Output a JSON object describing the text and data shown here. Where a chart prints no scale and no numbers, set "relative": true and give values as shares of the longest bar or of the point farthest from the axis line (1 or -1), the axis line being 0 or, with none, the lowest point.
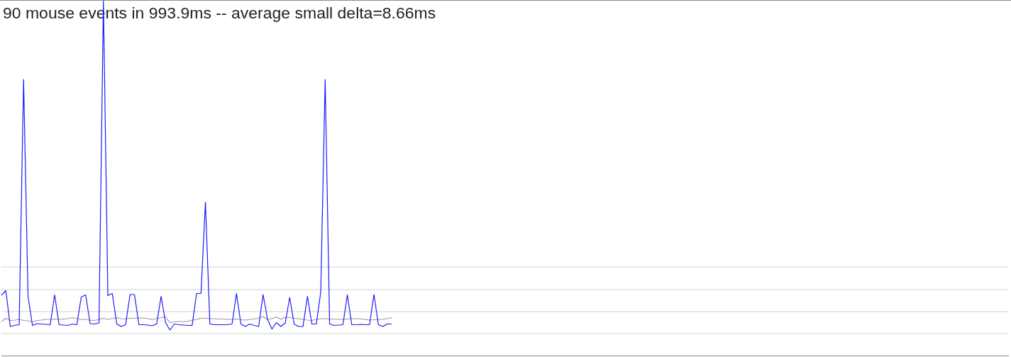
{
  "chart_data": {
    "type": "line",
    "title": "90 mouse events in 993.9ms -- average small delta=8.66ms",
    "relative": true,
    "categories": [
      null,
      null,
      null,
      null,
      null,
      null,
      null,
      null,
      null,
      null,
      null,
      null,
      null,
      null,
      null,
      null,
      null,
      null,
      null,
      null,
      null,
      null,
      null,
      null,
      null,
      null,
      null,
      null,
      null,
      null,
      null,
      null,
      null,
      null,
      null,
      null,
      null,
      null,
      null,
      null,
      null,
      null,
      null,
      null,
      null,
      null,
      null,
      null,
      null,
      null,
      null,
      null,
      null,
      null,
      null,
      null,
      null,
      null,
      null,
      null,
      null,
      null,
      null,
      null,
      null,
      null,
      null,
      null,
      null,
      null,
      null,
      null,
      null,
      null,
      null,
      null,
      null,
      null,
      null,
      null,
      null,
      null,
      null,
      null,
      null,
      null,
      null,
      null,
      null,
      null,
      null,
      null,
      null,
      null,
      null,
      null,
      null,
      null,
      null,
      null,
      null,
      null,
      null,
      null,
      null,
      null,
      null,
      null,
      null,
      null,
      null,
      null,
      null,
      null,
      null,
      null,
      null,
      null,
      null,
      null,
      null,
      null,
      null,
      null,
      null,
      null,
      null,
      null,
      null,
      null,
      null,
      null,
      null,
      null,
      null,
      null,
      null,
      null,
      null,
      null,
      null,
      null,
      null,
      null,
      null,
      null,
      null,
      null,
      null,
      null,
      null,
      null,
      null,
      null,
      null,
      null,
      null,
      null,
      null,
      null,
      null,
      null,
      null,
      null,
      null,
      null,
      null,
      null,
      null,
      null,
      null,
      null,
      null,
      null,
      null,
      null,
      null,
      null,
      null,
      null,
      null,
      null,
      null,
      null,
      null,
      null,
      null,
      null,
      null,
      null,
      null,
      null,
      null,
      null,
      null,
      null,
      null,
      null,
      null,
      null,
      null,
      null,
      null,
      null,
      null,
      null,
      null,
      null,
      null,
      null,
      null,
      null,
      null,
      null,
      null,
      null,
      null,
      null,
      null,
      null,
      null,
      null,
      null,
      null,
      null,
      null,
      null,
      null
    ],
    "series": [
      {
        "color": "#1a1aff",
        "values": [
          0.17,
          0.183,
          0.082,
          0.085,
          0.087,
          0.778,
          0.167,
          0.085,
          0.09,
          0.089,
          0.088,
          0.087,
          0.171,
          0.087,
          0.086,
          0.085,
          0.089,
          0.087,
          0.165,
          0.171,
          0.09,
          0.089,
          0.092,
          1,
          0.169,
          0.175,
          0.089,
          0.082,
          0.087,
          0.172,
          0.172,
          0.087,
          0.087,
          0.086,
          0.084,
          0.089,
          0.167,
          0.093,
          0.072,
          0.089,
          0.087,
          0.086,
          0.085,
          0.085,
          0.175,
          0.175,
          0.432,
          0.089,
          0.087,
          0.087,
          0.087,
          0.087,
          0.089,
          0.175,
          0.089,
          0.082,
          0.089,
          0.085,
          0.082,
          0.172,
          0.102,
          0.075,
          0.093,
          0.082,
          0.092,
          0.164,
          0.089,
          0.082,
          0.082,
          0.167,
          0.089,
          0.089,
          0.179,
          0.778,
          0.089,
          0.085,
          0.086,
          0.087,
          0.171,
          0.087,
          0.087,
          0.088,
          0.087,
          0.087,
          0.172,
          0.087,
          0.082,
          0.089,
          0.089,
          null,
          null,
          null,
          null,
          null,
          null,
          null,
          null,
          null,
          null,
          null,
          null,
          null,
          null,
          null,
          null,
          null,
          null,
          null,
          null,
          null,
          null,
          null,
          null,
          null,
          null,
          null,
          null,
          null,
          null,
          null,
          null,
          null,
          null,
          null,
          null,
          null,
          null,
          null,
          null,
          null,
          null,
          null,
          null,
          null,
          null,
          null,
          null,
          null,
          null,
          null,
          null,
          null,
          null,
          null,
          null,
          null,
          null,
          null,
          null,
          null,
          null,
          null,
          null,
          null,
          null,
          null,
          null,
          null,
          null,
          null,
          null,
          null,
          null,
          null,
          null,
          null,
          null,
          null,
          null,
          null,
          null,
          null,
          null,
          null,
          null,
          null,
          null,
          null,
          null,
          null,
          null,
          null,
          null,
          null,
          null,
          null,
          null,
          null,
          null,
          null,
          null,
          null,
          null,
          null,
          null,
          null,
          null,
          null,
          null,
          null,
          null,
          null,
          null,
          null,
          null,
          null,
          null,
          null,
          null,
          null,
          null,
          null,
          null,
          null,
          null,
          null,
          null,
          null,
          null,
          null,
          null,
          null,
          null,
          null,
          null,
          null,
          null,
          null
        ]
      },
      {
        "color": "#999999",
        "values": [
          0.096,
          0.105,
          0.099,
          0.1,
          0.102,
          0.099,
          0.098,
          0.095,
          0.099,
          0.1,
          0.102,
          0.102,
          0.103,
          0.102,
          0.103,
          0.104,
          0.107,
          0.104,
          0.102,
          0.102,
          0.1,
          0.099,
          0.102,
          0.105,
          0.102,
          0.104,
          0.107,
          0.104,
          0.103,
          0.105,
          0.105,
          0.106,
          0.106,
          0.104,
          0.102,
          0.104,
          0.107,
          0.109,
          0.093,
          0.095,
          0.096,
          0.096,
          0.096,
          0.1,
          0.102,
          0.105,
          0.105,
          0.104,
          0.104,
          0.103,
          0.103,
          0.102,
          0.102,
          0.103,
          0.101,
          0.1,
          0.102,
          0.103,
          0.105,
          0.11,
          0.102,
          0.104,
          0.109,
          0.102,
          0.108,
          0.107,
          0.105,
          0.104,
          0.102,
          0.1,
          0.099,
          0.102,
          0.104,
          0.104,
          0.103,
          0.103,
          0.102,
          0.102,
          0.103,
          0.104,
          0.104,
          0.103,
          0.102,
          0.1,
          0.101,
          0.102,
          0.102,
          0.104,
          0.107,
          null,
          null,
          null,
          null,
          null,
          null,
          null,
          null,
          null,
          null,
          null,
          null,
          null,
          null,
          null,
          null,
          null,
          null,
          null,
          null,
          null,
          null,
          null,
          null,
          null,
          null,
          null,
          null,
          null,
          null,
          null,
          null,
          null,
          null,
          null,
          null,
          null,
          null,
          null,
          null,
          null,
          null,
          null,
          null,
          null,
          null,
          null,
          null,
          null,
          null,
          null,
          null,
          null,
          null,
          null,
          null,
          null,
          null,
          null,
          null,
          null,
          null,
          null,
          null,
          null,
          null,
          null,
          null,
          null,
          null,
          null,
          null,
          null,
          null,
          null,
          null,
          null,
          null,
          null,
          null,
          null,
          null,
          null,
          null,
          null,
          null,
          null,
          null,
          null,
          null,
          null,
          null,
          null,
          null,
          null,
          null,
          null,
          null,
          null,
          null,
          null,
          null,
          null,
          null,
          null,
          null,
          null,
          null,
          null,
          null,
          null,
          null,
          null,
          null,
          null,
          null,
          null,
          null,
          null,
          null,
          null,
          null,
          null,
          null,
          null,
          null,
          null,
          null,
          null,
          null,
          null,
          null,
          null,
          null,
          null,
          null,
          null,
          null,
          null
        ]
      }
    ],
    "ref_lines": [
      {
        "axis": "y",
        "value": 0.062,
        "color": "#e8e8e8"
      },
      {
        "axis": "y",
        "value": 0.124,
        "color": "#e8e8e8"
      },
      {
        "axis": "y",
        "value": 0.186,
        "color": "#e8e8e8"
      },
      {
        "axis": "y",
        "value": 0.25,
        "color": "#e8e8e8"
      }
    ]
  }
}
